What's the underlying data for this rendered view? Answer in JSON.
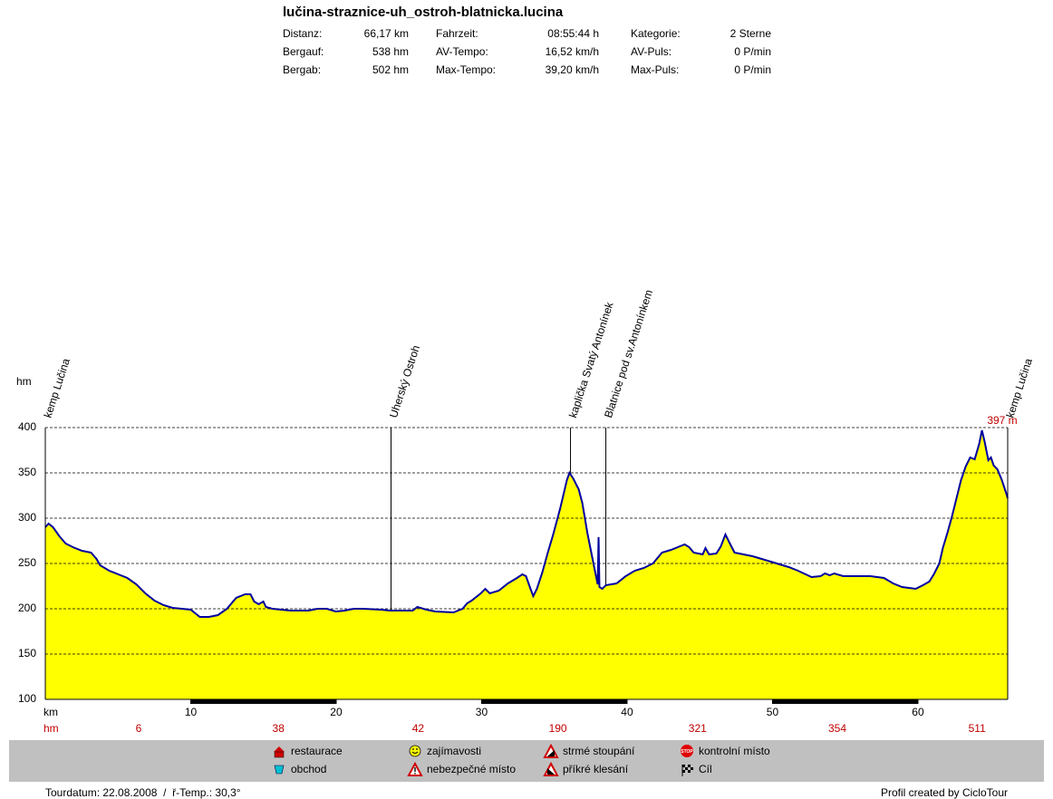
{
  "chart_data": {
    "type": "area",
    "title": "lučina-straznice-uh_ostroh-blatnicka.lucina",
    "stats": [
      [
        [
          "Distanz:",
          "66,17 km"
        ],
        [
          "Bergauf:",
          "538 hm"
        ],
        [
          "Bergab:",
          "502 hm"
        ]
      ],
      [
        [
          "Fahrzeit:",
          "08:55:44 h"
        ],
        [
          "AV-Tempo:",
          "16,52 km/h"
        ],
        [
          "Max-Tempo:",
          "39,20 km/h"
        ]
      ],
      [
        [
          "Kategorie:",
          "2 Sterne"
        ],
        [
          "AV-Puls:",
          "0 P/min"
        ],
        [
          "Max-Puls:",
          "0 P/min"
        ]
      ]
    ],
    "y_label": "hm",
    "x_label": "km",
    "xlim": [
      0,
      66.17
    ],
    "xticks": [
      10,
      20,
      30,
      40,
      50,
      60
    ],
    "ylim": [
      100,
      400
    ],
    "yticks": [
      100,
      150,
      200,
      250,
      300,
      350,
      400
    ],
    "grid": true,
    "x": [
      0,
      0.22,
      0.53,
      0.97,
      1.4,
      1.9,
      2.52,
      3.15,
      3.52,
      3.77,
      4.39,
      5.02,
      5.64,
      6.26,
      6.88,
      7.51,
      8.13,
      8.75,
      9.38,
      10.0,
      10.62,
      11.25,
      11.87,
      12.49,
      13.12,
      13.74,
      14.11,
      14.36,
      14.67,
      14.99,
      15.17,
      15.61,
      16.85,
      18.1,
      18.72,
      19.35,
      19.97,
      20.59,
      21.22,
      21.84,
      23.08,
      23.71,
      24.33,
      25.26,
      25.58,
      26.2,
      26.82,
      28.07,
      28.69,
      29.0,
      29.31,
      29.94,
      30.25,
      30.56,
      31.18,
      31.81,
      32.43,
      32.8,
      33.05,
      33.36,
      33.55,
      33.8,
      34.17,
      34.55,
      34.92,
      35.42,
      35.86,
      36.04,
      36.29,
      36.67,
      36.92,
      37.29,
      37.54,
      37.79,
      37.98,
      38.04,
      38.1,
      38.29,
      38.54,
      39.28,
      39.91,
      40.53,
      41.15,
      41.78,
      42.4,
      43.02,
      43.64,
      43.96,
      44.27,
      44.58,
      45.2,
      45.39,
      45.64,
      46.14,
      46.45,
      46.76,
      47.07,
      47.39,
      48.01,
      48.63,
      49.88,
      51.12,
      51.75,
      52.68,
      53.3,
      53.61,
      53.93,
      54.24,
      54.86,
      55.48,
      56.73,
      57.66,
      58.29,
      58.91,
      59.84,
      60.34,
      60.78,
      61.09,
      61.47,
      61.71,
      62.03,
      62.34,
      62.65,
      62.96,
      63.28,
      63.59,
      63.9,
      64.21,
      64.4,
      64.59,
      64.84,
      65.02,
      65.21,
      65.46,
      65.77,
      66.08,
      66.17
    ],
    "series": [
      {
        "color": "#0000a0",
        "fill": "#ffff00",
        "values": [
          290,
          294,
          290,
          280,
          272,
          268,
          264,
          262,
          255,
          248,
          242,
          238,
          234,
          227,
          217,
          209,
          204,
          201,
          200,
          199,
          191,
          191,
          193,
          200,
          212,
          216,
          216,
          208,
          205,
          208,
          202,
          200,
          198,
          198,
          200,
          200,
          197,
          198,
          200,
          200,
          199,
          198,
          198,
          198,
          202,
          199,
          197,
          196,
          200,
          206,
          209,
          217,
          222,
          217,
          220,
          228,
          234,
          238,
          236,
          222,
          214,
          222,
          240,
          262,
          282,
          312,
          342,
          350,
          344,
          332,
          317,
          282,
          262,
          242,
          227,
          279,
          224,
          222,
          226,
          228,
          236,
          242,
          245,
          250,
          262,
          265,
          269,
          271,
          268,
          262,
          260,
          267,
          260,
          261,
          269,
          282,
          272,
          262,
          260,
          258,
          252,
          246,
          242,
          235,
          236,
          239,
          237,
          239,
          236,
          236,
          236,
          234,
          228,
          224,
          222,
          226,
          230,
          238,
          250,
          267,
          284,
          302,
          322,
          342,
          357,
          367,
          365,
          382,
          397,
          384,
          364,
          367,
          358,
          354,
          342,
          327,
          322
        ]
      }
    ],
    "max_label": "397 m",
    "waypoints": [
      {
        "label": "kemp Lučina",
        "km": 0
      },
      {
        "label": "Uherský Ostroh",
        "km": 23.77
      },
      {
        "label": "kaplička Svatý Antonínek",
        "km": 36.11
      },
      {
        "label": "Blatnice pod sv.Antonínkem",
        "km": 38.54
      },
      {
        "label": "kemp Lučina",
        "km": 66.17
      }
    ],
    "climb_label": "hm",
    "climb_values": [
      6,
      38,
      42,
      190,
      321,
      354,
      511
    ],
    "legend_items": [
      "restaurace",
      "obchod",
      "zajímavosti",
      "nebezpečné místo",
      "strmé stoupání",
      "příkré klesání",
      "kontrolní místo",
      "Cíl"
    ],
    "footer_left": "Tourdatum: 22.08.2008  /  ř-Temp.: 30,3°",
    "footer_right": "Profil created by CicloTour"
  }
}
